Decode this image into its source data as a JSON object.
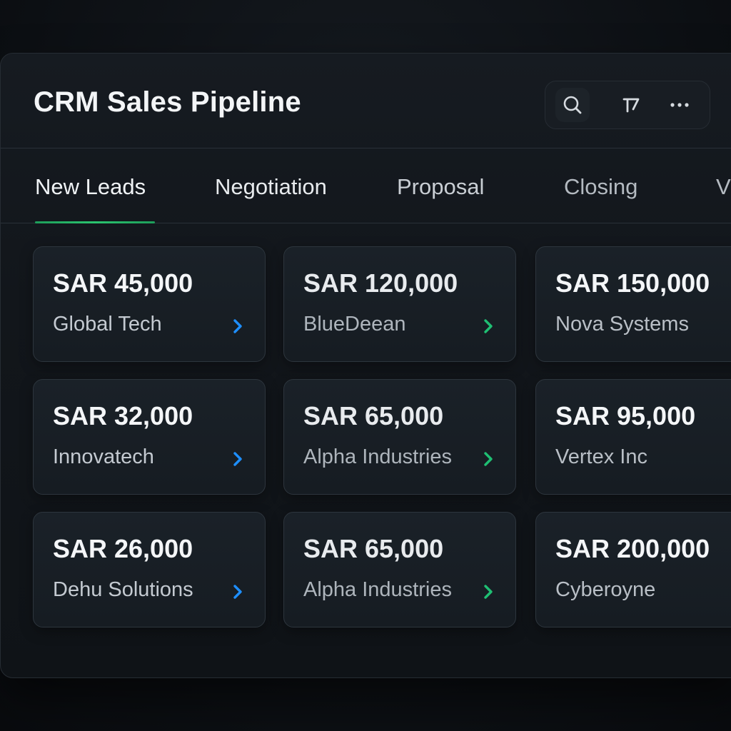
{
  "header": {
    "title": "CRM Sales Pipeline",
    "tools": {
      "search_icon": "search-icon",
      "text_icon": "text-format-icon",
      "more_icon": "more-horizontal-icon"
    }
  },
  "tabs": [
    {
      "label": "New Leads",
      "active": true
    },
    {
      "label": "Negotiation",
      "active": false
    },
    {
      "label": "Proposal",
      "active": false
    },
    {
      "label": "Closing",
      "active": false
    },
    {
      "label": "V",
      "active": false
    }
  ],
  "cards": [
    {
      "amount": "SAR 45,000",
      "company": "Global Tech",
      "chevron_color": "#1e8fff"
    },
    {
      "amount": "SAR 120,000",
      "company": "BlueDeean",
      "chevron_color": "#1fbf73"
    },
    {
      "amount": "SAR 150,000",
      "company": "Nova Systems"
    },
    {
      "amount": "SAR 32,000",
      "company": "Innovatech",
      "chevron_color": "#1e8fff"
    },
    {
      "amount": "SAR 65,000",
      "company": "Alpha Industries",
      "chevron_color": "#1fbf73"
    },
    {
      "amount": "SAR 95,000",
      "company": "Vertex Inc"
    },
    {
      "amount": "SAR 26,000",
      "company": "Dehu Solutions",
      "chevron_color": "#1e8fff"
    },
    {
      "amount": "SAR 65,000",
      "company": "Alpha Industries",
      "chevron_color": "#1fbf73"
    },
    {
      "amount": "SAR 200,000",
      "company": "Cyberoyne"
    }
  ],
  "colors": {
    "background": "#0d1014",
    "panel": "#151a20",
    "accent_green": "#2bc46f",
    "accent_blue": "#1e8fff",
    "text_primary": "#f3f5f7"
  }
}
